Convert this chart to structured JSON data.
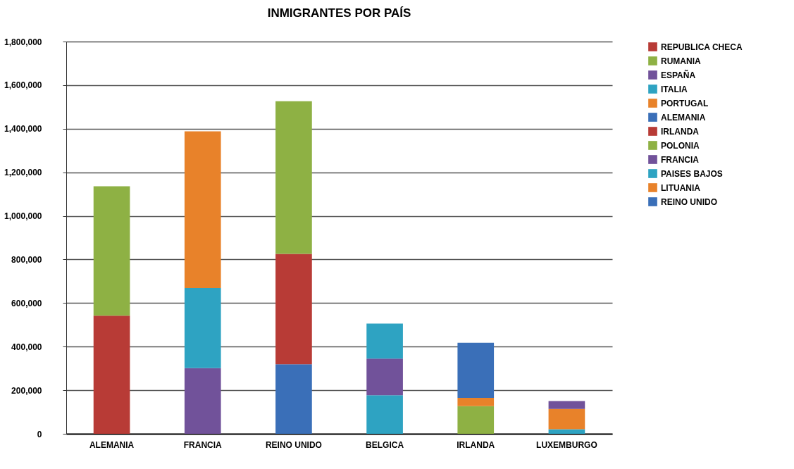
{
  "chart_data": {
    "type": "bar",
    "title": "INMIGRANTES POR PAÍS",
    "stacked": true,
    "grid": "y",
    "legend": "right",
    "categories": [
      "ALEMANIA",
      "FRANCIA",
      "REINO UNIDO",
      "BELGICA",
      "IRLANDA",
      "LUXEMBURGO"
    ],
    "ylim": [
      0,
      1800000
    ],
    "yticks": [
      0,
      {
        "value": 200000,
        "label": "200,000"
      },
      {
        "value": 400000,
        "label": "400,000"
      },
      {
        "value": 600000,
        "label": "600,000"
      },
      {
        "value": 800000,
        "label": "800,000"
      },
      {
        "value": 1000000,
        "label": "1,000,000"
      },
      {
        "value": 1200000,
        "label": "1,200,000"
      },
      {
        "value": 1400000,
        "label": "1,400,000"
      },
      {
        "value": 1600000,
        "label": "1,600,000"
      },
      {
        "value": 1800000,
        "label": "1,800,000"
      }
    ],
    "series": [
      {
        "name": "REPUBLICA CHECA",
        "color": "#b83b36",
        "values": [
          542000,
          null,
          null,
          null,
          null,
          null
        ]
      },
      {
        "name": "RUMANIA",
        "color": "#8eb144",
        "values": [
          594000,
          null,
          null,
          null,
          null,
          null
        ]
      },
      {
        "name": "ESPAÑA",
        "color": "#71529a",
        "values": [
          null,
          301000,
          null,
          null,
          null,
          null
        ]
      },
      {
        "name": "ITALIA",
        "color": "#2ea3c2",
        "values": [
          null,
          368000,
          null,
          177000,
          null,
          21000
        ]
      },
      {
        "name": "PORTUGAL",
        "color": "#e8822a",
        "values": [
          null,
          719000,
          null,
          null,
          null,
          93000
        ]
      },
      {
        "name": "ALEMANIA",
        "color": "#3a6fb8",
        "values": [
          null,
          null,
          319000,
          null,
          null,
          null
        ]
      },
      {
        "name": "IRLANDA",
        "color": "#b83b36",
        "values": [
          null,
          null,
          507000,
          null,
          null,
          null
        ]
      },
      {
        "name": "POLONIA",
        "color": "#8eb144",
        "values": [
          null,
          null,
          700000,
          null,
          127000,
          null
        ]
      },
      {
        "name": "FRANCIA",
        "color": "#71529a",
        "values": [
          null,
          null,
          null,
          168000,
          null,
          36000
        ]
      },
      {
        "name": "PAISES BAJOS",
        "color": "#2ea3c2",
        "values": [
          null,
          null,
          null,
          161000,
          null,
          null
        ]
      },
      {
        "name": "LITUANIA",
        "color": "#e8822a",
        "values": [
          null,
          null,
          null,
          null,
          38000,
          null
        ]
      },
      {
        "name": "REINO UNIDO",
        "color": "#3a6fb8",
        "values": [
          null,
          null,
          null,
          null,
          253000,
          null
        ]
      }
    ]
  }
}
